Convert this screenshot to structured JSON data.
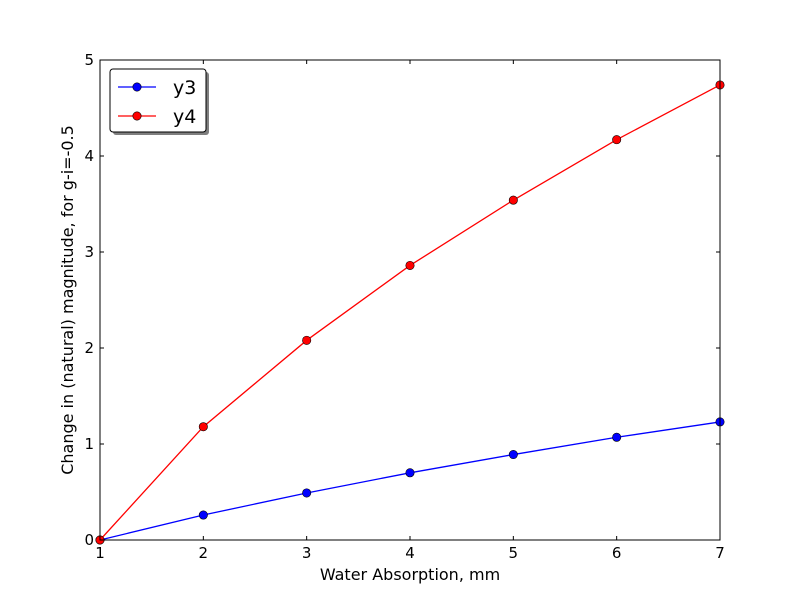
{
  "chart_data": {
    "type": "line",
    "title": "",
    "xlabel": "Water Absorption, mm",
    "ylabel": "Change in (natural) magnitude, for g-i=-0.5",
    "xlim": [
      1,
      7
    ],
    "ylim": [
      0,
      5
    ],
    "x_ticks": [
      1,
      2,
      3,
      4,
      5,
      6,
      7
    ],
    "y_ticks": [
      0,
      1,
      2,
      3,
      4,
      5
    ],
    "grid": false,
    "legend_position": "top-left",
    "x": [
      1,
      2,
      3,
      4,
      5,
      6,
      7
    ],
    "series": [
      {
        "name": "y3",
        "color": "#0000ff",
        "marker": "circle",
        "values": [
          0.0,
          0.26,
          0.49,
          0.7,
          0.89,
          1.07,
          1.23
        ]
      },
      {
        "name": "y4",
        "color": "#ff0000",
        "marker": "circle",
        "values": [
          0.0,
          1.18,
          2.08,
          2.86,
          3.54,
          4.17,
          4.74
        ]
      }
    ]
  }
}
